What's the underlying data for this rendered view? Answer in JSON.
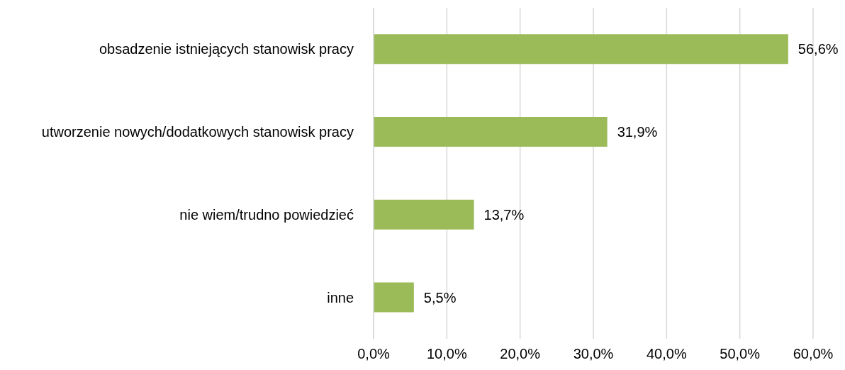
{
  "chart_data": {
    "type": "bar",
    "orientation": "horizontal",
    "categories": [
      "obsadzenie istniejących stanowisk pracy",
      "utworzenie nowych/dodatkowych stanowisk pracy",
      "nie wiem/trudno powiedzieć",
      "inne"
    ],
    "values": [
      56.6,
      31.9,
      13.7,
      5.5
    ],
    "color": "#9bbb59",
    "value_labels": [
      "56,6%",
      "31,9%",
      "13,7%",
      "5,5%"
    ],
    "xlim": [
      0,
      60
    ],
    "xticks": [
      {
        "value": 0,
        "label": "0,0%"
      },
      {
        "value": 10,
        "label": "10,0%"
      },
      {
        "value": 20,
        "label": "20,0%"
      },
      {
        "value": 30,
        "label": "30,0%"
      },
      {
        "value": 40,
        "label": "40,0%"
      },
      {
        "value": 50,
        "label": "50,0%"
      },
      {
        "value": 60,
        "label": "60,0%"
      }
    ],
    "grid": "x"
  }
}
